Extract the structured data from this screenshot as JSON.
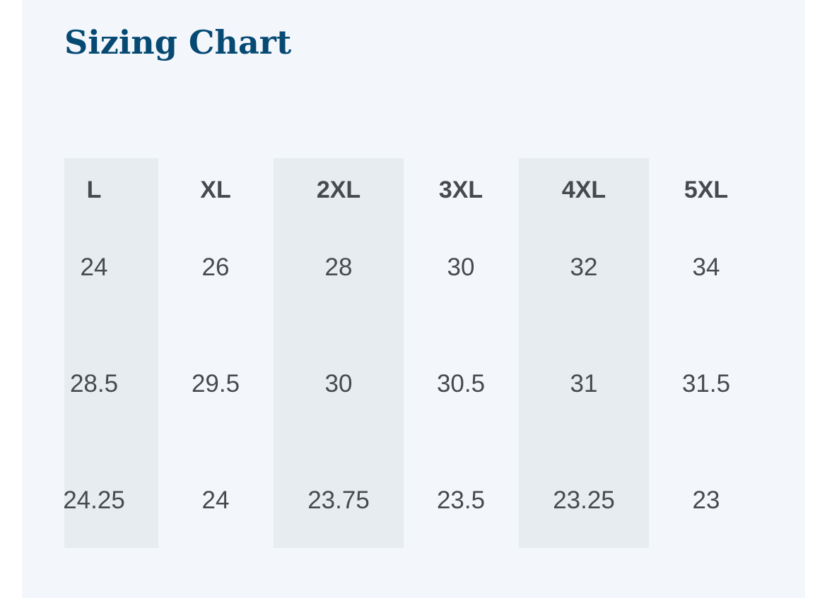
{
  "title": "Sizing Chart",
  "sizes": [
    "L",
    "XL",
    "2XL",
    "3XL",
    "4XL",
    "5XL"
  ],
  "rows": [
    [
      "24",
      "26",
      "28",
      "30",
      "32",
      "34"
    ],
    [
      "28.5",
      "29.5",
      "30",
      "30.5",
      "31",
      "31.5"
    ],
    [
      "24.25",
      "24",
      "23.75",
      "23.5",
      "23.25",
      "23"
    ]
  ],
  "colors": {
    "title": "#064a73",
    "text": "#474a4d",
    "panel_background": "#f3f7fc",
    "shaded_column": "#e7ecf0"
  }
}
